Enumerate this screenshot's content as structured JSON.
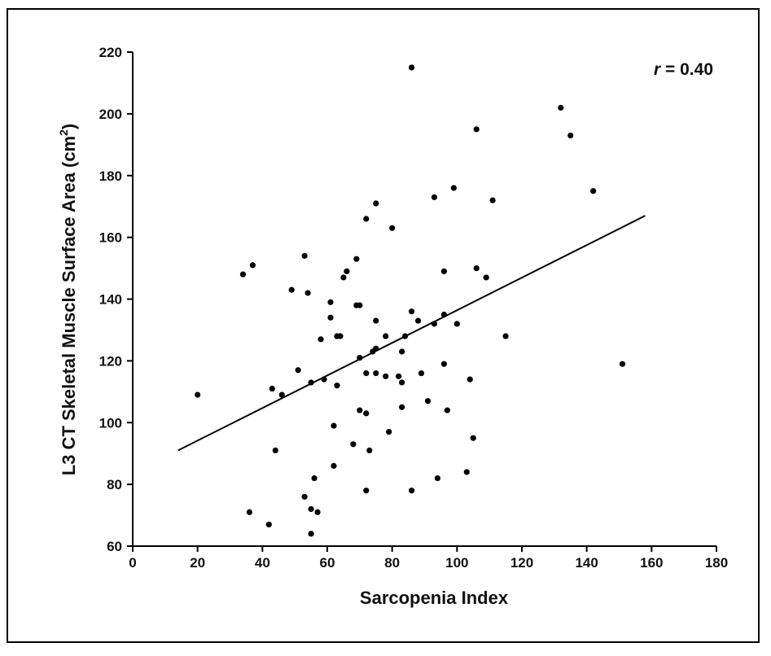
{
  "chart_data": {
    "type": "scatter",
    "xlabel": "Sarcopenia Index",
    "ylabel_main": "L3 CT Skeletal Muscle Surface Area (cm",
    "ylabel_sup": "2",
    "ylabel_end": ")",
    "annotation": {
      "r_symbol": "r",
      "r_rest": " = 0.40"
    },
    "xlim": [
      0,
      180
    ],
    "ylim": [
      60,
      220
    ],
    "x_ticks": [
      "0",
      "20",
      "40",
      "60",
      "80",
      "100",
      "120",
      "140",
      "160",
      "180"
    ],
    "y_ticks": [
      "60",
      "80",
      "100",
      "120",
      "140",
      "160",
      "180",
      "200",
      "220"
    ],
    "grid": false,
    "trendline": {
      "x": [
        14,
        158
      ],
      "y": [
        91,
        167
      ]
    },
    "points": [
      [
        20,
        109
      ],
      [
        34,
        148
      ],
      [
        37,
        151
      ],
      [
        36,
        71
      ],
      [
        42,
        67
      ],
      [
        43,
        111
      ],
      [
        44,
        91
      ],
      [
        46,
        109
      ],
      [
        49,
        143
      ],
      [
        51,
        117
      ],
      [
        53,
        76
      ],
      [
        53,
        154
      ],
      [
        54,
        142
      ],
      [
        55,
        113
      ],
      [
        55,
        72
      ],
      [
        55,
        64
      ],
      [
        56,
        82
      ],
      [
        57,
        71
      ],
      [
        58,
        127
      ],
      [
        59,
        114
      ],
      [
        61,
        139
      ],
      [
        61,
        134
      ],
      [
        62,
        99
      ],
      [
        62,
        86
      ],
      [
        63,
        128
      ],
      [
        63,
        112
      ],
      [
        64,
        128
      ],
      [
        65,
        147
      ],
      [
        66,
        149
      ],
      [
        68,
        93
      ],
      [
        69,
        153
      ],
      [
        69,
        138
      ],
      [
        70,
        138
      ],
      [
        70,
        104
      ],
      [
        70,
        121
      ],
      [
        72,
        166
      ],
      [
        72,
        116
      ],
      [
        72,
        103
      ],
      [
        72,
        78
      ],
      [
        73,
        91
      ],
      [
        74,
        123
      ],
      [
        75,
        124
      ],
      [
        75,
        133
      ],
      [
        75,
        116
      ],
      [
        75,
        171
      ],
      [
        78,
        128
      ],
      [
        78,
        115
      ],
      [
        79,
        97
      ],
      [
        80,
        163
      ],
      [
        82,
        115
      ],
      [
        83,
        113
      ],
      [
        83,
        123
      ],
      [
        83,
        105
      ],
      [
        84,
        128
      ],
      [
        86,
        136
      ],
      [
        86,
        78
      ],
      [
        86,
        215
      ],
      [
        88,
        133
      ],
      [
        89,
        116
      ],
      [
        91,
        107
      ],
      [
        93,
        173
      ],
      [
        93,
        132
      ],
      [
        94,
        82
      ],
      [
        96,
        149
      ],
      [
        96,
        135
      ],
      [
        96,
        119
      ],
      [
        97,
        104
      ],
      [
        99,
        176
      ],
      [
        100,
        132
      ],
      [
        103,
        84
      ],
      [
        104,
        114
      ],
      [
        105,
        95
      ],
      [
        106,
        150
      ],
      [
        106,
        195
      ],
      [
        109,
        147
      ],
      [
        111,
        172
      ],
      [
        115,
        128
      ],
      [
        132,
        202
      ],
      [
        135,
        193
      ],
      [
        142,
        175
      ],
      [
        151,
        119
      ]
    ]
  }
}
